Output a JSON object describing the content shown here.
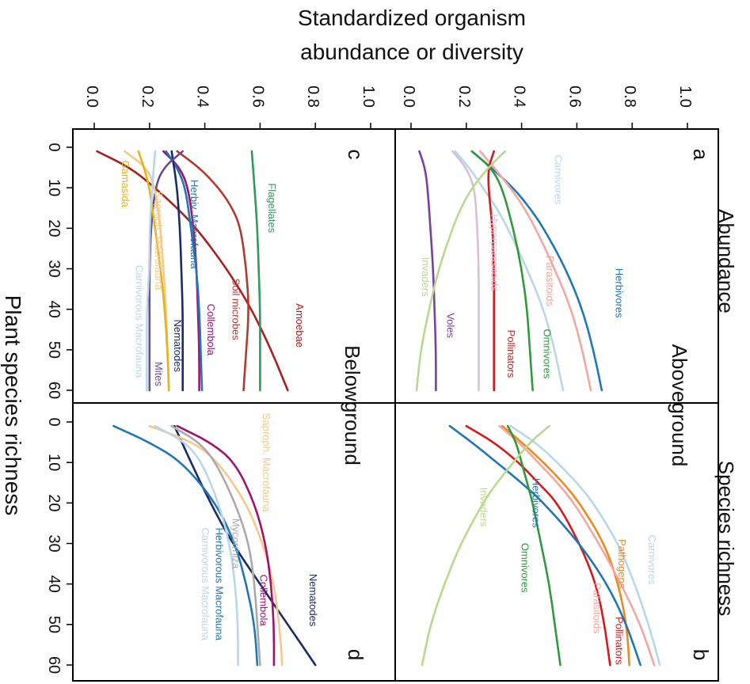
{
  "figure": {
    "y_title_line1": "Standardized organism",
    "y_title_line2": "abundance or diversity",
    "x_title": "Plant species richness",
    "row_abundance": "Abundance",
    "row_richness": "Species richness",
    "col_above": "Aboveground",
    "col_below": "Belowground"
  },
  "y_ticks_top": [
    "0.0",
    "0.2",
    "0.4",
    "0.6",
    "0.8",
    "1.0"
  ],
  "y_ticks_bottom": [
    "0.0",
    "0.2",
    "0.4",
    "0.6",
    "0.8",
    "1.0"
  ],
  "x_ticks": [
    "0",
    "10",
    "20",
    "30",
    "40",
    "50",
    "60"
  ],
  "chart_data": [
    {
      "panel": "a",
      "type": "line",
      "row": "Abundance",
      "group": "Aboveground",
      "xlim": [
        0,
        60
      ],
      "ylim": [
        0,
        1
      ],
      "series": [
        {
          "name": "Carnivores",
          "color": "#b8d8ea",
          "x": [
            1,
            5,
            10,
            15,
            20,
            30,
            40,
            50,
            60
          ],
          "y": [
            0.16,
            0.21,
            0.26,
            0.31,
            0.35,
            0.42,
            0.48,
            0.52,
            0.55
          ],
          "label": {
            "x": 8,
            "y": 0.52
          }
        },
        {
          "name": "Herbivores",
          "color": "#1f77b4",
          "x": [
            1,
            5,
            10,
            15,
            20,
            30,
            40,
            50,
            60
          ],
          "y": [
            0.22,
            0.29,
            0.37,
            0.43,
            0.48,
            0.56,
            0.62,
            0.66,
            0.69
          ],
          "label": {
            "x": 36,
            "y": 0.74
          }
        },
        {
          "name": "Parasitoids",
          "color": "#f4a6a0",
          "x": [
            1,
            5,
            10,
            15,
            20,
            30,
            40,
            50,
            60
          ],
          "y": [
            0.25,
            0.3,
            0.36,
            0.41,
            0.45,
            0.52,
            0.58,
            0.62,
            0.65
          ],
          "label": {
            "x": 33,
            "y": 0.49
          }
        },
        {
          "name": "Hyperparasitoids",
          "color": "#d8bfd8",
          "x": [
            1,
            5,
            10,
            20,
            30,
            40,
            50,
            60
          ],
          "y": [
            0.15,
            0.2,
            0.23,
            0.24,
            0.245,
            0.245,
            0.245,
            0.245
          ],
          "label": {
            "x": 26,
            "y": 0.29
          }
        },
        {
          "name": "Omnivores",
          "color": "#2e9a3c",
          "x": [
            1,
            5,
            10,
            20,
            30,
            40,
            50,
            60
          ],
          "y": [
            0.22,
            0.29,
            0.33,
            0.37,
            0.4,
            0.42,
            0.43,
            0.44
          ],
          "label": {
            "x": 51,
            "y": 0.48
          }
        },
        {
          "name": "Pollinators",
          "color": "#d7191c",
          "x": [
            1,
            5,
            10,
            20,
            30,
            40,
            50,
            60
          ],
          "y": [
            0.3,
            0.28,
            0.28,
            0.295,
            0.3,
            0.3,
            0.3,
            0.3
          ],
          "label": {
            "x": 51,
            "y": 0.35
          }
        },
        {
          "name": "Voles",
          "color": "#7b3f9e",
          "x": [
            1,
            5,
            10,
            20,
            30,
            40,
            50,
            60
          ],
          "y": [
            0.03,
            0.05,
            0.06,
            0.07,
            0.08,
            0.085,
            0.09,
            0.09
          ],
          "label": {
            "x": 44,
            "y": 0.13
          }
        },
        {
          "name": "Invaders",
          "color": "#b9d98c",
          "x": [
            1,
            5,
            10,
            15,
            20,
            30,
            40,
            50,
            60
          ],
          "y": [
            0.34,
            0.28,
            0.22,
            0.18,
            0.15,
            0.1,
            0.065,
            0.035,
            0.02
          ],
          "label": {
            "x": 32,
            "y": 0.04
          }
        }
      ]
    },
    {
      "panel": "b",
      "type": "line",
      "row": "Species richness",
      "group": "Aboveground",
      "xlim": [
        0,
        60
      ],
      "ylim": [
        0,
        1
      ],
      "series": [
        {
          "name": "Carnivores",
          "color": "#b8d8ea",
          "x": [
            1,
            5,
            10,
            15,
            20,
            30,
            40,
            50,
            60
          ],
          "y": [
            0.36,
            0.45,
            0.53,
            0.6,
            0.66,
            0.75,
            0.81,
            0.86,
            0.9
          ],
          "label": {
            "x": 34,
            "y": 0.86
          }
        },
        {
          "name": "Pathogens",
          "color": "#ee8a1c",
          "x": [
            1,
            5,
            10,
            15,
            20,
            30,
            40,
            50,
            60
          ],
          "y": [
            0.33,
            0.4,
            0.48,
            0.55,
            0.61,
            0.7,
            0.75,
            0.78,
            0.79
          ],
          "label": {
            "x": 35,
            "y": 0.75
          }
        },
        {
          "name": "Parasitoids",
          "color": "#f4a6a0",
          "x": [
            1,
            5,
            10,
            15,
            20,
            30,
            40,
            50,
            60
          ],
          "y": [
            0.32,
            0.39,
            0.46,
            0.53,
            0.59,
            0.68,
            0.76,
            0.83,
            0.88
          ],
          "label": {
            "x": 46,
            "y": 0.66
          }
        },
        {
          "name": "Pollinators",
          "color": "#d7191c",
          "x": [
            1,
            5,
            10,
            15,
            20,
            30,
            40,
            50,
            60
          ],
          "y": [
            0.2,
            0.3,
            0.39,
            0.46,
            0.53,
            0.61,
            0.67,
            0.7,
            0.72
          ],
          "label": {
            "x": 54,
            "y": 0.74
          }
        },
        {
          "name": "Herbivores",
          "color": "#1f77b4",
          "x": [
            1,
            5,
            10,
            15,
            20,
            30,
            40,
            50,
            60
          ],
          "y": [
            0.14,
            0.22,
            0.31,
            0.4,
            0.48,
            0.61,
            0.71,
            0.78,
            0.83
          ],
          "label": {
            "x": 20,
            "y": 0.44
          }
        },
        {
          "name": "Omnivores",
          "color": "#2e9a3c",
          "x": [
            1,
            5,
            10,
            15,
            20,
            30,
            40,
            50,
            60
          ],
          "y": [
            0.35,
            0.38,
            0.4,
            0.42,
            0.44,
            0.47,
            0.5,
            0.52,
            0.54
          ],
          "label": {
            "x": 36,
            "y": 0.4
          }
        },
        {
          "name": "Invaders",
          "color": "#b9d98c",
          "x": [
            1,
            5,
            10,
            15,
            20,
            30,
            40,
            50,
            60
          ],
          "y": [
            0.5,
            0.43,
            0.37,
            0.31,
            0.26,
            0.18,
            0.12,
            0.07,
            0.04
          ],
          "label": {
            "x": 21,
            "y": 0.25
          }
        }
      ]
    },
    {
      "panel": "c",
      "type": "line",
      "row": "Abundance",
      "group": "Belowground",
      "xlim": [
        0,
        60
      ],
      "ylim": [
        0,
        1
      ],
      "series": [
        {
          "name": "Amoebae",
          "color": "#a6211f",
          "x": [
            1,
            5,
            10,
            15,
            20,
            30,
            40,
            50,
            60
          ],
          "y": [
            0.01,
            0.13,
            0.22,
            0.3,
            0.37,
            0.48,
            0.57,
            0.64,
            0.7
          ],
          "label": {
            "x": 44,
            "y": 0.73
          }
        },
        {
          "name": "Flagellates",
          "color": "#2e9a5c",
          "x": [
            1,
            10,
            20,
            30,
            40,
            50,
            60
          ],
          "y": [
            0.57,
            0.58,
            0.59,
            0.595,
            0.6,
            0.6,
            0.6
          ],
          "label": {
            "x": 15,
            "y": 0.63
          }
        },
        {
          "name": "Soil microbes",
          "color": "#b33a2e",
          "x": [
            1,
            5,
            10,
            15,
            20,
            30,
            40,
            50,
            60
          ],
          "y": [
            0.3,
            0.38,
            0.45,
            0.5,
            0.53,
            0.55,
            0.56,
            0.55,
            0.54
          ],
          "label": {
            "x": 40,
            "y": 0.5
          }
        },
        {
          "name": "Collembola",
          "color": "#a0126e",
          "x": [
            1,
            5,
            10,
            20,
            30,
            40,
            50,
            60
          ],
          "y": [
            0.25,
            0.31,
            0.34,
            0.36,
            0.37,
            0.375,
            0.38,
            0.38
          ],
          "label": {
            "x": 45,
            "y": 0.41
          }
        },
        {
          "name": "Herbiv. Macrofauna",
          "color": "#1f77b4",
          "x": [
            1,
            5,
            10,
            20,
            30,
            40,
            50,
            60
          ],
          "y": [
            0.26,
            0.3,
            0.33,
            0.35,
            0.37,
            0.38,
            0.385,
            0.39
          ],
          "label": {
            "x": 19,
            "y": 0.35
          }
        },
        {
          "name": "Nematodes",
          "color": "#1b2a6b",
          "x": [
            1,
            10,
            20,
            30,
            40,
            50,
            60
          ],
          "y": [
            0.28,
            0.3,
            0.31,
            0.315,
            0.32,
            0.32,
            0.32
          ],
          "label": {
            "x": 49,
            "y": 0.29
          }
        },
        {
          "name": "Mites",
          "color": "#6a4c93",
          "x": [
            1,
            5,
            10,
            20,
            30,
            40,
            50,
            60
          ],
          "y": [
            0.32,
            0.25,
            0.22,
            0.205,
            0.2,
            0.2,
            0.2,
            0.2
          ],
          "label": {
            "x": 56,
            "y": 0.22
          }
        },
        {
          "name": "Saproph. Macrofauna",
          "color": "#f5c98a",
          "x": [
            1,
            5,
            10,
            20,
            30,
            40,
            50,
            60
          ],
          "y": [
            0.11,
            0.19,
            0.22,
            0.24,
            0.25,
            0.26,
            0.265,
            0.27
          ],
          "label": {
            "x": 23,
            "y": 0.22
          }
        },
        {
          "name": "Gamasida",
          "color": "#e3b51a",
          "x": [
            1,
            5,
            10,
            20,
            30,
            40,
            50,
            60
          ],
          "y": [
            0.16,
            0.18,
            0.2,
            0.22,
            0.24,
            0.255,
            0.265,
            0.27
          ],
          "label": {
            "x": 9,
            "y": 0.1
          }
        },
        {
          "name": "Carnivorous Macrofauna",
          "color": "#b8d8ea",
          "x": [
            1,
            10,
            20,
            30,
            40,
            50,
            60
          ],
          "y": [
            0.22,
            0.21,
            0.2,
            0.2,
            0.19,
            0.19,
            0.19
          ],
          "label": {
            "x": 43,
            "y": 0.15
          }
        }
      ]
    },
    {
      "panel": "d",
      "type": "line",
      "row": "Species richness",
      "group": "Belowground",
      "xlim": [
        0,
        60
      ],
      "ylim": [
        0,
        1
      ],
      "series": [
        {
          "name": "Nematodes",
          "color": "#1b2a6b",
          "x": [
            1,
            10,
            20,
            30,
            40,
            50,
            60
          ],
          "y": [
            0.29,
            0.35,
            0.42,
            0.5,
            0.6,
            0.7,
            0.8
          ],
          "label": {
            "x": 44,
            "y": 0.78
          }
        },
        {
          "name": "Saproph. Macrofauna",
          "color": "#f5c98a",
          "x": [
            1,
            5,
            10,
            20,
            30,
            40,
            50,
            60
          ],
          "y": [
            0.2,
            0.36,
            0.45,
            0.55,
            0.61,
            0.65,
            0.67,
            0.68
          ],
          "label": {
            "x": 10,
            "y": 0.61
          }
        },
        {
          "name": "Collembola",
          "color": "#a0126e",
          "x": [
            1,
            5,
            10,
            20,
            30,
            40,
            50,
            60
          ],
          "y": [
            0.3,
            0.42,
            0.51,
            0.58,
            0.62,
            0.64,
            0.65,
            0.65
          ],
          "label": {
            "x": 44,
            "y": 0.6
          }
        },
        {
          "name": "Mycorrhiza",
          "color": "#aaaaaa",
          "x": [
            1,
            5,
            10,
            20,
            30,
            40,
            50,
            60
          ],
          "y": [
            0.28,
            0.38,
            0.44,
            0.51,
            0.56,
            0.58,
            0.59,
            0.6
          ],
          "label": {
            "x": 30,
            "y": 0.5
          }
        },
        {
          "name": "Herbivorous Macrofauna",
          "color": "#1f77b4",
          "x": [
            1,
            5,
            10,
            20,
            30,
            40,
            50,
            60
          ],
          "y": [
            0.07,
            0.2,
            0.32,
            0.44,
            0.51,
            0.55,
            0.58,
            0.59
          ],
          "label": {
            "x": 40,
            "y": 0.44
          }
        },
        {
          "name": "Carnivorous Macrofauna",
          "color": "#b8d8ea",
          "x": [
            1,
            5,
            10,
            20,
            30,
            40,
            50,
            60
          ],
          "y": [
            0.22,
            0.33,
            0.39,
            0.45,
            0.49,
            0.51,
            0.52,
            0.52
          ],
          "label": {
            "x": 40,
            "y": 0.39
          }
        }
      ]
    }
  ]
}
